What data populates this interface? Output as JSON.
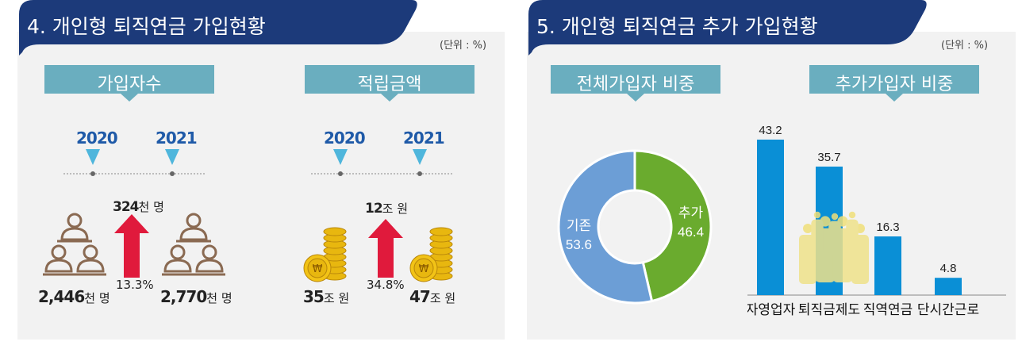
{
  "left_panel": {
    "title": "4. 개인형 퇴직연금 가입현황",
    "unit": "(단위 : %)",
    "subscribers": {
      "banner": "가입자수",
      "year_from": "2020",
      "year_to": "2021",
      "value_from": "2,446",
      "value_from_unit": "천 명",
      "value_to": "2,770",
      "value_to_unit": "천 명",
      "increase": "324",
      "increase_unit": "천 명",
      "growth_rate": "13.3%"
    },
    "reserves": {
      "banner": "적립금액",
      "year_from": "2020",
      "year_to": "2021",
      "value_from": "35",
      "value_from_unit": "조 원",
      "value_to": "47",
      "value_to_unit": "조 원",
      "increase": "12",
      "increase_unit": "조 원",
      "growth_rate": "34.8%"
    }
  },
  "right_panel": {
    "title": "5. 개인형 퇴직연금 추가 가입현황",
    "unit": "(단위 : %)"
  },
  "chart_data": [
    {
      "type": "pie",
      "title": "전체가입자 비중",
      "categories": [
        "추가",
        "기존"
      ],
      "values": [
        46.4,
        53.6
      ],
      "colors": [
        "#6aab2e",
        "#6c9ed6"
      ],
      "donut": true
    },
    {
      "type": "bar",
      "title": "추가가입자 비중",
      "categories": [
        "자영업자",
        "퇴직금제도",
        "직역연금",
        "단시간근로"
      ],
      "values": [
        43.2,
        35.7,
        16.3,
        4.8
      ],
      "color": "#0a8fd6",
      "ylim": [
        0,
        50
      ],
      "grid": false
    }
  ],
  "colors": {
    "header_navy": "#1c3a7a",
    "banner_teal": "#6aaebf",
    "year_blue": "#1f5aa8",
    "triangle": "#4fb6dc",
    "arrow_red": "#e01a3c",
    "person_brown": "#8a6a52",
    "coin_gold": "#e8b70f"
  },
  "icons": [
    "person-icon",
    "coin-stack-icon",
    "up-arrow-icon",
    "down-triangle-icon",
    "crowd-icon"
  ]
}
